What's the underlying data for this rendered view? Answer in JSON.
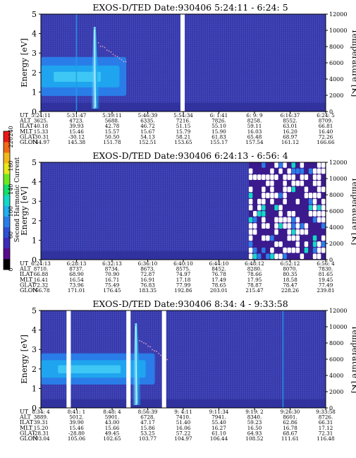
{
  "chart_data": [
    {
      "type": "heatmap",
      "title": "EXOS-D/TED   Date:930406   5:24:11 - 6:24: 5",
      "ylabel": "Energy [eV]",
      "ylabel_right": "Temperature [K]",
      "ylim": [
        0,
        5
      ],
      "ylim_right": [
        0,
        12000
      ],
      "yticks": [
        "0",
        "1",
        "2",
        "3",
        "4",
        "5"
      ],
      "yticks_right": [
        "0",
        "2000",
        "4000",
        "6000",
        "8000",
        "10000",
        "12000"
      ],
      "row_labels": [
        "UT",
        "ALT",
        "ILAT",
        "MLT",
        "GLAT",
        "GLON"
      ],
      "columns": [
        [
          "5:24:11",
          "3625.",
          "40.18",
          "15.33",
          "-30.31",
          "144.97"
        ],
        [
          "5:31:47",
          "4723.",
          "39.93",
          "15.46",
          "-30.12",
          "145.38"
        ],
        [
          "5:39:11",
          "5688.",
          "42.78",
          "15.57",
          "50.50",
          "151.78"
        ],
        [
          "5:46:39",
          "6335.",
          "46.72",
          "15.67",
          "54.13",
          "152.51"
        ],
        [
          "5:54:34",
          "7216.",
          "51.15",
          "15.79",
          "58.21",
          "153.65"
        ],
        [
          "6: 1:41",
          "7826.",
          "55.10",
          "15.90",
          "61.83",
          "155.17"
        ],
        [
          "6: 9: 9",
          "8258.",
          "59.11",
          "16.03",
          "65.48",
          "157.54"
        ],
        [
          "6:16:37",
          "8552.",
          "63.01",
          "16.20",
          "68.97",
          "161.12"
        ],
        [
          "6:24: 5",
          "8709.",
          "66.81",
          "16.40",
          "72.26",
          "166.66"
        ]
      ],
      "gaps": [
        [
          0.49,
          0.505
        ]
      ],
      "features": [
        {
          "kind": "band",
          "x": [
            0.0,
            0.3
          ],
          "y": [
            0.8,
            2.8
          ]
        },
        {
          "kind": "spike",
          "x": 0.19
        },
        {
          "kind": "line",
          "x": 0.125
        }
      ]
    },
    {
      "type": "heatmap",
      "title": "EXOS-D/TED   Date:930406   6:24:13 - 6:56: 4",
      "ylabel": "Energy [eV]",
      "ylabel_right": "Temperature [K]",
      "ylim": [
        0,
        5
      ],
      "ylim_right": [
        0,
        12000
      ],
      "yticks": [
        "0",
        "1",
        "2",
        "3",
        "4",
        "5"
      ],
      "yticks_right": [
        "0",
        "2000",
        "4000",
        "6000",
        "8000",
        "10000",
        "12000"
      ],
      "row_labels": [
        "UT",
        "ALT",
        "ILAT",
        "MLT",
        "GLAT",
        "GLON"
      ],
      "columns": [
        [
          "6:24:13",
          "8710.",
          "66.88",
          "16.41",
          "72.32",
          "166.78"
        ],
        [
          "6:28:13",
          "8737.",
          "68.90",
          "16.54",
          "73.96",
          "171.01"
        ],
        [
          "6:32:13",
          "8734.",
          "70.90",
          "16.71",
          "75.49",
          "176.45"
        ],
        [
          "6:36:10",
          "8673.",
          "72.87",
          "16.91",
          "76.83",
          "183.35"
        ],
        [
          "6:40:10",
          "8575.",
          "74.97",
          "17.18",
          "77.99",
          "192.86"
        ],
        [
          "6:44:10",
          "8452.",
          "76.78",
          "17.49",
          "78.65",
          "203.01"
        ],
        [
          "6:48:12",
          "8280.",
          "78.66",
          "17.95",
          "78.87",
          "215.47"
        ],
        [
          "6:52:12",
          "8070.",
          "80.35",
          "18.58",
          "78.47",
          "228.26"
        ],
        [
          "6:56: 4",
          "7830.",
          "81.65",
          "19.45",
          "77.49",
          "239.81"
        ]
      ],
      "features": [
        {
          "kind": "patchy",
          "x": [
            0.73,
            1.0
          ]
        }
      ]
    },
    {
      "type": "heatmap",
      "title": "EXOS-D/TED   Date:930406   8:34: 4 - 9:33:58",
      "ylabel": "Energy [eV]",
      "ylabel_right": "Temperature [K]",
      "ylim": [
        0,
        5
      ],
      "ylim_right": [
        0,
        12000
      ],
      "yticks": [
        "0",
        "1",
        "2",
        "3",
        "4",
        "5"
      ],
      "yticks_right": [
        "0",
        "2000",
        "4000",
        "6000",
        "8000",
        "10000",
        "12000"
      ],
      "row_labels": [
        "UT",
        "ALT",
        "ILAT",
        "MLT",
        "GLAT",
        "GLON"
      ],
      "columns": [
        [
          "8:34: 4",
          "3889.",
          "39.31",
          "15.20",
          "-28.31",
          "103.04"
        ],
        [
          "8:41: 1",
          "5012.",
          "39.90",
          "15.46",
          "-28.80",
          "105.06"
        ],
        [
          "8:48: 4",
          "5901.",
          "43.00",
          "15.66",
          "49.45",
          "102.65"
        ],
        [
          "8:56:39",
          "6728.",
          "47.17",
          "15.86",
          "53.25",
          "103.77"
        ],
        [
          "9: 4:11",
          "7410.",
          "51.40",
          "16.06",
          "57.22",
          "104.97"
        ],
        [
          "9:11:34",
          "7941.",
          "55.40",
          "16.27",
          "61.10",
          "106.44"
        ],
        [
          "9:19: 2",
          "8340.",
          "59.23",
          "16.50",
          "64.93",
          "108.52"
        ],
        [
          "9:26:30",
          "8601.",
          "62.86",
          "16.78",
          "68.67",
          "111.61"
        ],
        [
          "9:33:58",
          "8726.",
          "66.31",
          "17.12",
          "72.31",
          "116.48"
        ]
      ],
      "gaps": [
        [
          0.09,
          0.105
        ],
        [
          0.3,
          0.315
        ],
        [
          0.425,
          0.44
        ]
      ],
      "features": [
        {
          "kind": "band",
          "x": [
            0.0,
            0.4
          ],
          "y": [
            1.2,
            2.8
          ]
        },
        {
          "kind": "spike",
          "x": 0.335
        },
        {
          "kind": "line",
          "x": 0.85
        }
      ]
    }
  ],
  "colorbar": {
    "label": "Second Harmonic Current",
    "ticks": [
      "0",
      "60",
      "100",
      "140",
      "180",
      "220",
      "240"
    ],
    "colors": [
      "#000000",
      "#5a0a8c",
      "#3d2ab8",
      "#2f4fd6",
      "#2a7de8",
      "#1fb0f0",
      "#12d8c8",
      "#12e06a",
      "#6ee81e",
      "#e8e81a",
      "#f0b81a",
      "#f06a14",
      "#e81a14"
    ]
  }
}
